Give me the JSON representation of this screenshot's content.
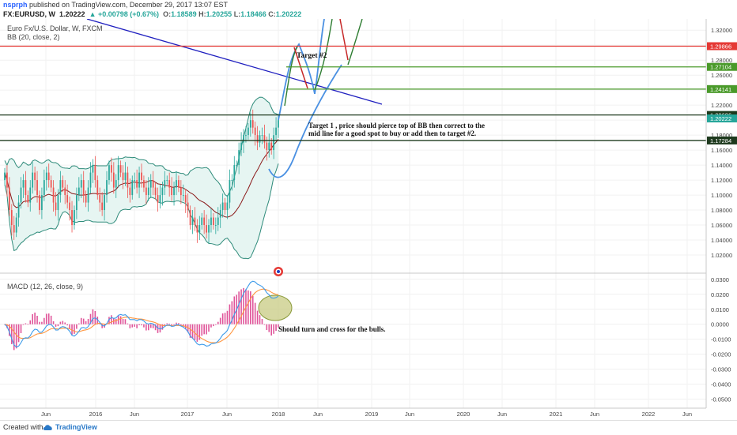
{
  "header": {
    "user": "nsprph",
    "published": "published on TradingView.com, December 29, 2017 13:07 EST",
    "symbol": "FX:EURUSD, W",
    "last": "1.20222",
    "change": "▲ +0.00798 (+0.67%)",
    "o_label": "O:",
    "o": "1.18589",
    "h_label": "H:",
    "h": "1.20255",
    "l_label": "L:",
    "l": "1.18466",
    "c_label": "C:",
    "c": "1.20222"
  },
  "legend": {
    "main": "Euro Fx/U.S. Dollar, W, FXCM",
    "bb": "BB (20, close, 2)",
    "macd": "MACD (12, 26, close, 9)"
  },
  "annotations": {
    "target2": "Target #2",
    "target1_line1": "Target 1 , price should pierce top of BB then correct to the",
    "target1_line2": "mid line for a good spot to buy or add then to target #2.",
    "macd_note": "Should turn and cross for the bulls."
  },
  "footer": {
    "created": "Created with",
    "brand": "TradingView"
  },
  "colors": {
    "bull": "#26a69a",
    "bear": "#ef5350",
    "bb_fill": "#e6f5f2",
    "bb_band": "#2e8b7a",
    "bb_mid": "#8b1a1a",
    "macd": "#3d9be9",
    "signal": "#ff9640",
    "hist": "#e0559a",
    "trend_blue": "#1f1fbf",
    "red_line": "#e53935",
    "green_line": "#4a9a2a",
    "dark_line": "#1e3a1e",
    "proj_blue": "#4a90e2"
  },
  "chart_data": [
    {
      "type": "candlestick",
      "title": "Euro Fx/U.S. Dollar, W, FXCM",
      "x_ticks": [
        "Jun",
        "2016",
        "Jun",
        "2017",
        "Jun",
        "2018",
        "Jun",
        "2019",
        "Jun",
        "2020",
        "Jun",
        "2021",
        "Jun",
        "2022",
        "Jun"
      ],
      "y_ticks": [
        "1.32000",
        "1.30000",
        "1.28000",
        "1.26000",
        "1.24000",
        "1.22000",
        "1.20000",
        "1.18000",
        "1.16000",
        "1.14000",
        "1.12000",
        "1.10000",
        "1.08000",
        "1.06000",
        "1.04000",
        "1.02000"
      ],
      "ylim": [
        1.0,
        1.335
      ],
      "price_labels": [
        {
          "value": 1.29866,
          "text": "1.29866",
          "color": "#e53935"
        },
        {
          "value": 1.27104,
          "text": "1.27104",
          "color": "#4a9a2a"
        },
        {
          "value": 1.24141,
          "text": "1.24141",
          "color": "#4a9a2a"
        },
        {
          "value": 1.20686,
          "text": "1.20686",
          "color": "#1e3a1e"
        },
        {
          "value": 1.20222,
          "text": "1.20222",
          "color": "#26a69a"
        },
        {
          "value": 1.17284,
          "text": "1.17284",
          "color": "#1e3a1e"
        }
      ],
      "horizontal_lines": [
        {
          "value": 1.29866,
          "color": "#e53935"
        },
        {
          "value": 1.27104,
          "color": "#4a9a2a"
        },
        {
          "value": 1.24141,
          "color": "#4a9a2a"
        },
        {
          "value": 1.20686,
          "color": "#1e3a1e"
        },
        {
          "value": 1.17284,
          "color": "#1e3a1e"
        }
      ],
      "close_series": [
        1.13,
        1.11,
        1.08,
        1.06,
        1.05,
        1.07,
        1.09,
        1.11,
        1.12,
        1.1,
        1.09,
        1.11,
        1.13,
        1.12,
        1.1,
        1.08,
        1.1,
        1.12,
        1.13,
        1.12,
        1.11,
        1.09,
        1.08,
        1.1,
        1.12,
        1.11,
        1.1,
        1.09,
        1.08,
        1.06,
        1.08,
        1.1,
        1.11,
        1.12,
        1.1,
        1.09,
        1.11,
        1.13,
        1.14,
        1.12,
        1.1,
        1.09,
        1.08,
        1.1,
        1.12,
        1.14,
        1.13,
        1.11,
        1.12,
        1.14,
        1.13,
        1.12,
        1.13,
        1.11,
        1.1,
        1.12,
        1.12,
        1.11,
        1.13,
        1.12,
        1.11,
        1.1,
        1.11,
        1.12,
        1.11,
        1.1,
        1.09,
        1.1,
        1.11,
        1.12,
        1.12,
        1.11,
        1.1,
        1.11,
        1.12,
        1.11,
        1.1,
        1.1,
        1.09,
        1.08,
        1.06,
        1.07,
        1.06,
        1.05,
        1.06,
        1.07,
        1.06,
        1.05,
        1.06,
        1.07,
        1.06,
        1.06,
        1.07,
        1.08,
        1.09,
        1.08,
        1.09,
        1.12,
        1.12,
        1.14,
        1.14,
        1.16,
        1.17,
        1.18,
        1.18,
        1.19,
        1.2,
        1.19,
        1.18,
        1.17,
        1.18,
        1.18,
        1.17,
        1.16,
        1.17,
        1.16,
        1.18,
        1.19,
        1.2
      ]
    },
    {
      "type": "macd",
      "title": "MACD (12, 26, close, 9)",
      "y_ticks": [
        "0.0300",
        "0.0200",
        "0.0100",
        "0.0000",
        "-0.0100",
        "-0.0200",
        "-0.0300",
        "-0.0400",
        "-0.0500"
      ],
      "ylim": [
        -0.056,
        0.032
      ]
    }
  ]
}
